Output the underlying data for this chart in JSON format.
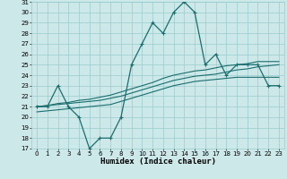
{
  "xlabel": "Humidex (Indice chaleur)",
  "bg_color": "#cce8e8",
  "grid_color": "#99cccc",
  "line_color": "#1a6e6e",
  "x_data": [
    0,
    1,
    2,
    3,
    4,
    5,
    6,
    7,
    8,
    9,
    10,
    11,
    12,
    13,
    14,
    15,
    16,
    17,
    18,
    19,
    20,
    21,
    22,
    23
  ],
  "y_main": [
    21,
    21,
    23,
    21,
    20,
    17,
    18,
    18,
    20,
    25,
    27,
    29,
    28,
    30,
    31,
    30,
    25,
    26,
    24,
    25,
    25,
    25,
    23,
    23
  ],
  "y_reg1": [
    20.5,
    20.6,
    20.7,
    20.8,
    20.9,
    21.0,
    21.1,
    21.2,
    21.5,
    21.8,
    22.1,
    22.4,
    22.7,
    23.0,
    23.2,
    23.4,
    23.5,
    23.6,
    23.7,
    23.8,
    23.8,
    23.8,
    23.8,
    23.8
  ],
  "y_reg2": [
    21.0,
    21.1,
    21.2,
    21.3,
    21.4,
    21.5,
    21.6,
    21.8,
    22.0,
    22.3,
    22.6,
    22.9,
    23.2,
    23.5,
    23.7,
    23.9,
    24.0,
    24.1,
    24.3,
    24.5,
    24.6,
    24.8,
    24.9,
    25.0
  ],
  "y_reg3": [
    21.0,
    21.1,
    21.3,
    21.4,
    21.6,
    21.7,
    21.9,
    22.1,
    22.4,
    22.7,
    23.0,
    23.3,
    23.7,
    24.0,
    24.2,
    24.4,
    24.5,
    24.7,
    24.9,
    25.0,
    25.1,
    25.3,
    25.3,
    25.3
  ],
  "ylim": [
    17,
    31
  ],
  "xlim": [
    -0.5,
    23.5
  ],
  "yticks": [
    17,
    18,
    19,
    20,
    21,
    22,
    23,
    24,
    25,
    26,
    27,
    28,
    29,
    30,
    31
  ],
  "xticks": [
    0,
    1,
    2,
    3,
    4,
    5,
    6,
    7,
    8,
    9,
    10,
    11,
    12,
    13,
    14,
    15,
    16,
    17,
    18,
    19,
    20,
    21,
    22,
    23
  ],
  "tick_fontsize": 5,
  "xlabel_fontsize": 6.5,
  "lw_main": 0.9,
  "lw_reg": 0.8
}
